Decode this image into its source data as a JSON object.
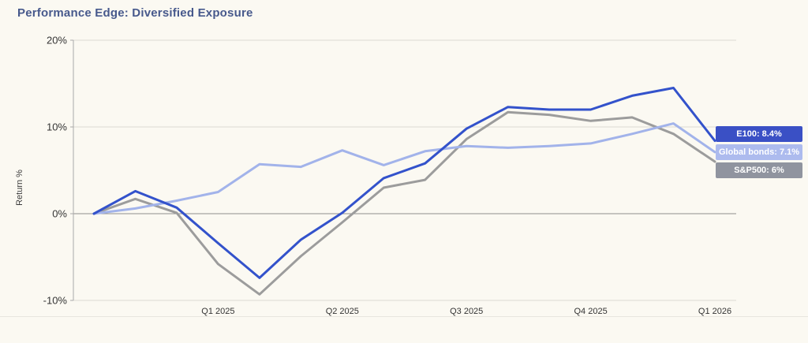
{
  "page": {
    "background": "#fbf9f2",
    "bottom_divider_color": "#e8e6df"
  },
  "header": {
    "title": "Performance Edge: Diversified Exposure",
    "title_color": "#47598c"
  },
  "chart_data": {
    "type": "line",
    "title": "Performance Edge: Diversified Exposure",
    "xlabel": "",
    "ylabel": "Return %",
    "ylim": [
      -10,
      20
    ],
    "grid": "horizontal",
    "zero_line": true,
    "legend_position": "right-overlay",
    "yticks": [
      {
        "value": 20,
        "label": "20%"
      },
      {
        "value": 10,
        "label": "10%"
      },
      {
        "value": 0,
        "label": "0%"
      },
      {
        "value": -10,
        "label": "-10%"
      }
    ],
    "x_point_count": 16,
    "x_ticks": [
      {
        "index": 3,
        "label": "Q1 2025"
      },
      {
        "index": 6,
        "label": "Q2 2025"
      },
      {
        "index": 9,
        "label": "Q3 2025"
      },
      {
        "index": 12,
        "label": "Q4 2025"
      },
      {
        "index": 15,
        "label": "Q1 2026"
      }
    ],
    "series": [
      {
        "name": "E100",
        "label": "E100: 8.4%",
        "final_value": 8.4,
        "color": "#3352cb",
        "badge_color": "#3a50c5",
        "values": [
          0,
          2.6,
          0.7,
          -3.4,
          -7.4,
          -3.0,
          0.1,
          4.1,
          5.8,
          9.8,
          12.3,
          12.0,
          12.0,
          13.6,
          14.5,
          8.4
        ]
      },
      {
        "name": "Global bonds",
        "label": "Global bonds: 7.1%",
        "final_value": 7.1,
        "color": "#a2b3ea",
        "badge_color": "#adbbee",
        "values": [
          0,
          0.6,
          1.5,
          2.5,
          5.7,
          5.4,
          7.3,
          5.6,
          7.2,
          7.8,
          7.6,
          7.8,
          8.1,
          9.2,
          10.4,
          7.1
        ]
      },
      {
        "name": "S&P500",
        "label": "S&P500: 6%",
        "final_value": 6,
        "color": "#9c9c9c",
        "badge_color": "#90949f",
        "values": [
          0,
          1.7,
          0.1,
          -5.8,
          -9.3,
          -4.9,
          -1.0,
          3.0,
          3.9,
          8.6,
          11.7,
          11.4,
          10.7,
          11.1,
          9.2,
          6.0
        ]
      }
    ],
    "axis_colors": {
      "grid": "#dbd9d2",
      "zero": "#8f8f8f",
      "axis": "#a9a9a9",
      "tick_text": "#343434"
    }
  }
}
